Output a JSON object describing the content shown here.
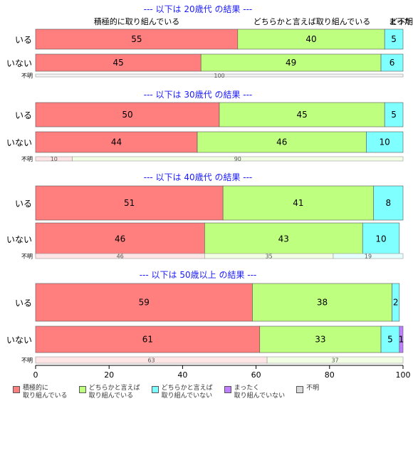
{
  "chart_data": {
    "type": "bar",
    "orientation": "horizontal",
    "stacked": true,
    "xlim": [
      0,
      100
    ],
    "x_ticks": [
      "0",
      "20",
      "40",
      "60",
      "80",
      "100"
    ],
    "grid": false,
    "top_annotations": [
      "積極的に取り組んでいる",
      "どちらかと言えば取り組んでいる",
      "ど",
      "まった",
      "不明"
    ],
    "legend": {
      "position": "bottom",
      "entries": [
        {
          "label": "積極的に\n取り組んでいる",
          "color": "#FF7F7F"
        },
        {
          "label": "どちらかと言えば\n取り組んでいる",
          "color": "#BFFF7F"
        },
        {
          "label": "どちらかと言えば\n取り組んでいない",
          "color": "#7FFFFF"
        },
        {
          "label": "まったく\n取り組んでいない",
          "color": "#BF7FFF"
        },
        {
          "label": "不明",
          "color": "#D9D9D9"
        }
      ]
    },
    "panels": [
      {
        "title": "--- 以下は 20歳代 の結果 ---",
        "rows": [
          {
            "label": "いる",
            "values": [
              55,
              40,
              5,
              0,
              0
            ]
          },
          {
            "label": "いない",
            "values": [
              45,
              49,
              6,
              0,
              0
            ]
          },
          {
            "label": "不明",
            "values": [
              0,
              0,
              0,
              0,
              100
            ],
            "thin": true
          }
        ]
      },
      {
        "title": "--- 以下は 30歳代 の結果 ---",
        "rows": [
          {
            "label": "いる",
            "values": [
              50,
              45,
              5,
              0,
              0
            ]
          },
          {
            "label": "いない",
            "values": [
              44,
              46,
              10,
              0,
              0
            ]
          },
          {
            "label": "不明",
            "values": [
              10,
              90,
              0,
              0,
              0
            ],
            "thin": true
          }
        ]
      },
      {
        "title": "--- 以下は 40歳代 の結果 ---",
        "rows": [
          {
            "label": "いる",
            "values": [
              51,
              41,
              8,
              0,
              0
            ]
          },
          {
            "label": "いない",
            "values": [
              46,
              43,
              10,
              0,
              0
            ]
          },
          {
            "label": "不明",
            "values": [
              46,
              35,
              19,
              0,
              0
            ],
            "thin": true
          }
        ]
      },
      {
        "title": "--- 以下は 50歳以上 の結果 ---",
        "rows": [
          {
            "label": "いる",
            "values": [
              59,
              38,
              2,
              0,
              0
            ]
          },
          {
            "label": "いない",
            "values": [
              61,
              33,
              5,
              1,
              0
            ]
          },
          {
            "label": "不明",
            "values": [
              63,
              37,
              0,
              0,
              0
            ],
            "thin": true
          }
        ]
      }
    ]
  }
}
